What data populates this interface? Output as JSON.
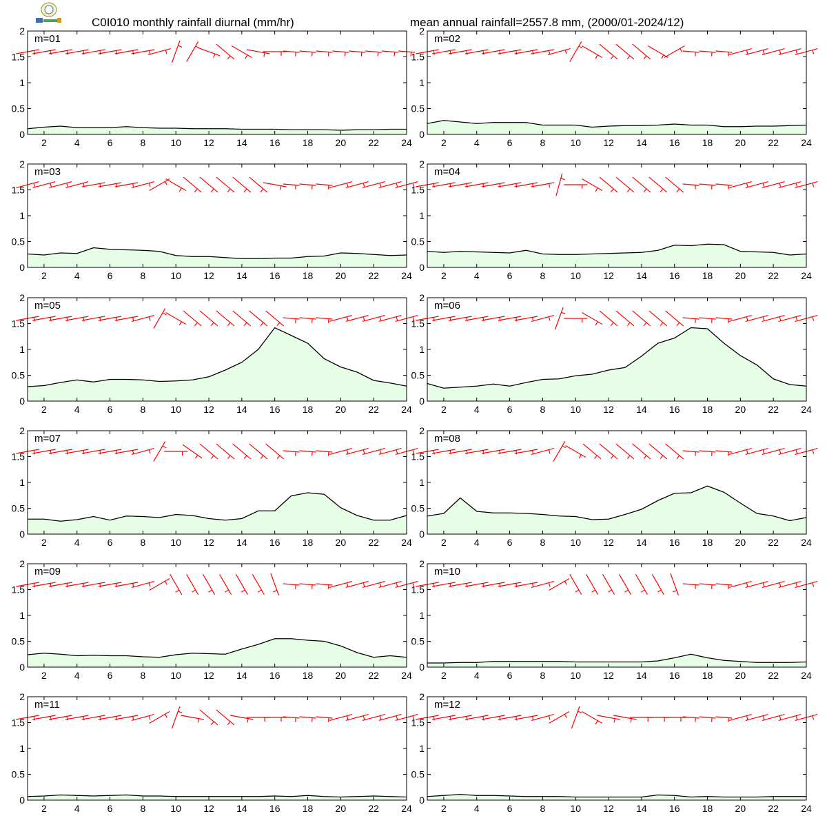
{
  "header": {
    "title_left": "C0I010 monthly rainfall diurnal (mm/hr)",
    "title_right": "mean annual rainfall=2557.8 mm, (2000/01-2024/12)",
    "logo_icon": "institution-logo-icon"
  },
  "colors": {
    "line": "#000000",
    "fill": "#e6fde6",
    "wind": "#ff0000",
    "axis": "#000000"
  },
  "chart_data": {
    "type": "area",
    "x": [
      1,
      2,
      3,
      4,
      5,
      6,
      7,
      8,
      9,
      10,
      11,
      12,
      13,
      14,
      15,
      16,
      17,
      18,
      19,
      20,
      21,
      22,
      23,
      24
    ],
    "xticks": [
      2,
      4,
      6,
      8,
      10,
      12,
      14,
      16,
      18,
      20,
      22,
      24
    ],
    "yticks": [
      "0",
      "0.5",
      "1",
      "1.5",
      "2"
    ],
    "xlim": [
      1,
      24
    ],
    "ylim": [
      0,
      2
    ],
    "grid": false,
    "wind_level": 1.6,
    "panels": [
      {
        "label": "m=01",
        "values": [
          0.11,
          0.14,
          0.16,
          0.13,
          0.13,
          0.13,
          0.15,
          0.13,
          0.12,
          0.12,
          0.11,
          0.11,
          0.11,
          0.1,
          0.1,
          0.1,
          0.09,
          0.09,
          0.09,
          0.08,
          0.09,
          0.09,
          0.1,
          0.1
        ],
        "wind_dir": [
          80,
          80,
          80,
          80,
          80,
          80,
          80,
          80,
          75,
          20,
          30,
          110,
          130,
          120,
          100,
          90,
          null,
          null,
          null,
          null,
          null,
          null,
          null,
          null
        ]
      },
      {
        "label": "m=02",
        "values": [
          0.21,
          0.27,
          0.24,
          0.21,
          0.23,
          0.23,
          0.23,
          0.18,
          0.18,
          0.18,
          0.14,
          0.16,
          0.17,
          0.17,
          0.18,
          0.2,
          0.18,
          0.18,
          0.15,
          0.15,
          0.16,
          0.16,
          0.17,
          0.18
        ],
        "wind_dir": [
          80,
          80,
          80,
          80,
          80,
          80,
          80,
          80,
          75,
          30,
          120,
          130,
          130,
          130,
          120,
          60,
          null,
          null,
          null,
          75,
          75,
          75,
          75,
          75
        ]
      },
      {
        "label": "m=03",
        "values": [
          0.26,
          0.24,
          0.28,
          0.27,
          0.38,
          0.35,
          0.34,
          0.33,
          0.31,
          0.23,
          0.21,
          0.21,
          0.19,
          0.17,
          0.17,
          0.18,
          0.18,
          0.21,
          0.22,
          0.28,
          0.27,
          0.25,
          0.23,
          0.24
        ],
        "wind_dir": [
          75,
          75,
          75,
          75,
          80,
          80,
          80,
          75,
          60,
          120,
          130,
          130,
          130,
          130,
          130,
          100,
          null,
          null,
          null,
          75,
          75,
          75,
          75,
          75
        ]
      },
      {
        "label": "m=04",
        "values": [
          0.31,
          0.29,
          0.31,
          0.3,
          0.29,
          0.28,
          0.33,
          0.26,
          0.25,
          0.25,
          0.26,
          0.27,
          0.28,
          0.29,
          0.33,
          0.43,
          0.42,
          0.45,
          0.44,
          0.31,
          0.3,
          0.29,
          0.24,
          0.26
        ],
        "wind_dir": [
          80,
          80,
          80,
          80,
          80,
          80,
          80,
          80,
          15,
          90,
          120,
          130,
          130,
          130,
          130,
          130,
          null,
          null,
          null,
          75,
          75,
          75,
          75,
          75
        ]
      },
      {
        "label": "m=05",
        "values": [
          0.28,
          0.3,
          0.36,
          0.41,
          0.37,
          0.42,
          0.42,
          0.41,
          0.38,
          0.39,
          0.41,
          0.47,
          0.6,
          0.75,
          1.0,
          1.42,
          1.27,
          1.12,
          0.82,
          0.66,
          0.56,
          0.4,
          0.35,
          0.29
        ],
        "wind_dir": [
          80,
          80,
          80,
          80,
          80,
          80,
          80,
          75,
          30,
          120,
          130,
          130,
          130,
          130,
          130,
          130,
          null,
          null,
          null,
          75,
          75,
          75,
          75,
          75
        ]
      },
      {
        "label": "m=06",
        "values": [
          0.34,
          0.25,
          0.27,
          0.29,
          0.33,
          0.29,
          0.36,
          0.42,
          0.43,
          0.49,
          0.52,
          0.6,
          0.65,
          0.87,
          1.12,
          1.22,
          1.42,
          1.4,
          1.12,
          0.88,
          0.7,
          0.43,
          0.32,
          0.29
        ],
        "wind_dir": [
          80,
          80,
          80,
          80,
          80,
          80,
          80,
          75,
          20,
          90,
          120,
          130,
          130,
          130,
          130,
          130,
          null,
          null,
          null,
          75,
          75,
          75,
          75,
          75
        ]
      },
      {
        "label": "m=07",
        "values": [
          0.29,
          0.29,
          0.25,
          0.28,
          0.34,
          0.27,
          0.35,
          0.34,
          0.32,
          0.38,
          0.36,
          0.3,
          0.27,
          0.3,
          0.45,
          0.45,
          0.74,
          0.8,
          0.77,
          0.51,
          0.36,
          0.27,
          0.27,
          0.36
        ],
        "wind_dir": [
          80,
          80,
          80,
          80,
          80,
          80,
          80,
          75,
          30,
          90,
          125,
          130,
          130,
          130,
          130,
          130,
          null,
          null,
          null,
          75,
          75,
          75,
          75,
          75
        ]
      },
      {
        "label": "m=08",
        "values": [
          0.35,
          0.4,
          0.7,
          0.44,
          0.41,
          0.41,
          0.4,
          0.38,
          0.35,
          0.34,
          0.28,
          0.29,
          0.38,
          0.48,
          0.65,
          0.79,
          0.8,
          0.93,
          0.81,
          0.6,
          0.4,
          0.35,
          0.26,
          0.32
        ],
        "wind_dir": [
          80,
          80,
          80,
          80,
          80,
          80,
          80,
          75,
          30,
          120,
          130,
          130,
          130,
          130,
          130,
          130,
          null,
          null,
          null,
          75,
          75,
          75,
          75,
          75
        ]
      },
      {
        "label": "m=09",
        "values": [
          0.24,
          0.27,
          0.25,
          0.22,
          0.23,
          0.22,
          0.22,
          0.2,
          0.19,
          0.24,
          0.27,
          0.26,
          0.25,
          0.35,
          0.44,
          0.55,
          0.55,
          0.52,
          0.5,
          0.41,
          0.28,
          0.19,
          0.22,
          0.19
        ],
        "wind_dir": [
          80,
          80,
          80,
          80,
          80,
          80,
          80,
          75,
          60,
          150,
          150,
          150,
          150,
          150,
          150,
          160,
          null,
          null,
          null,
          75,
          75,
          75,
          75,
          75
        ]
      },
      {
        "label": "m=10",
        "values": [
          0.08,
          0.08,
          0.09,
          0.09,
          0.11,
          0.11,
          0.11,
          0.11,
          0.11,
          0.1,
          0.1,
          0.1,
          0.1,
          0.1,
          0.12,
          0.18,
          0.25,
          0.18,
          0.13,
          0.11,
          0.09,
          0.09,
          0.09,
          0.1
        ],
        "wind_dir": [
          80,
          80,
          80,
          80,
          80,
          80,
          80,
          75,
          60,
          150,
          150,
          150,
          150,
          150,
          150,
          160,
          null,
          null,
          null,
          75,
          75,
          75,
          75,
          75
        ]
      },
      {
        "label": "m=11",
        "values": [
          0.07,
          0.08,
          0.1,
          0.09,
          0.08,
          0.09,
          0.1,
          0.08,
          0.08,
          0.07,
          0.07,
          0.07,
          0.07,
          0.07,
          0.07,
          0.08,
          0.07,
          0.09,
          0.07,
          0.06,
          0.07,
          0.08,
          0.07,
          0.06
        ],
        "wind_dir": [
          80,
          80,
          80,
          80,
          80,
          80,
          80,
          75,
          60,
          20,
          100,
          130,
          130,
          100,
          90,
          90,
          null,
          null,
          null,
          75,
          75,
          75,
          75,
          75
        ]
      },
      {
        "label": "m=12",
        "values": [
          0.07,
          0.09,
          0.11,
          0.09,
          0.09,
          0.08,
          0.07,
          0.07,
          0.07,
          0.06,
          0.06,
          0.06,
          0.06,
          0.06,
          0.1,
          0.09,
          0.06,
          0.07,
          0.06,
          0.06,
          0.06,
          0.07,
          0.07,
          0.07
        ],
        "wind_dir": [
          80,
          80,
          80,
          80,
          80,
          80,
          80,
          75,
          60,
          20,
          120,
          100,
          100,
          90,
          90,
          90,
          null,
          null,
          null,
          75,
          75,
          75,
          75,
          75
        ]
      }
    ]
  }
}
